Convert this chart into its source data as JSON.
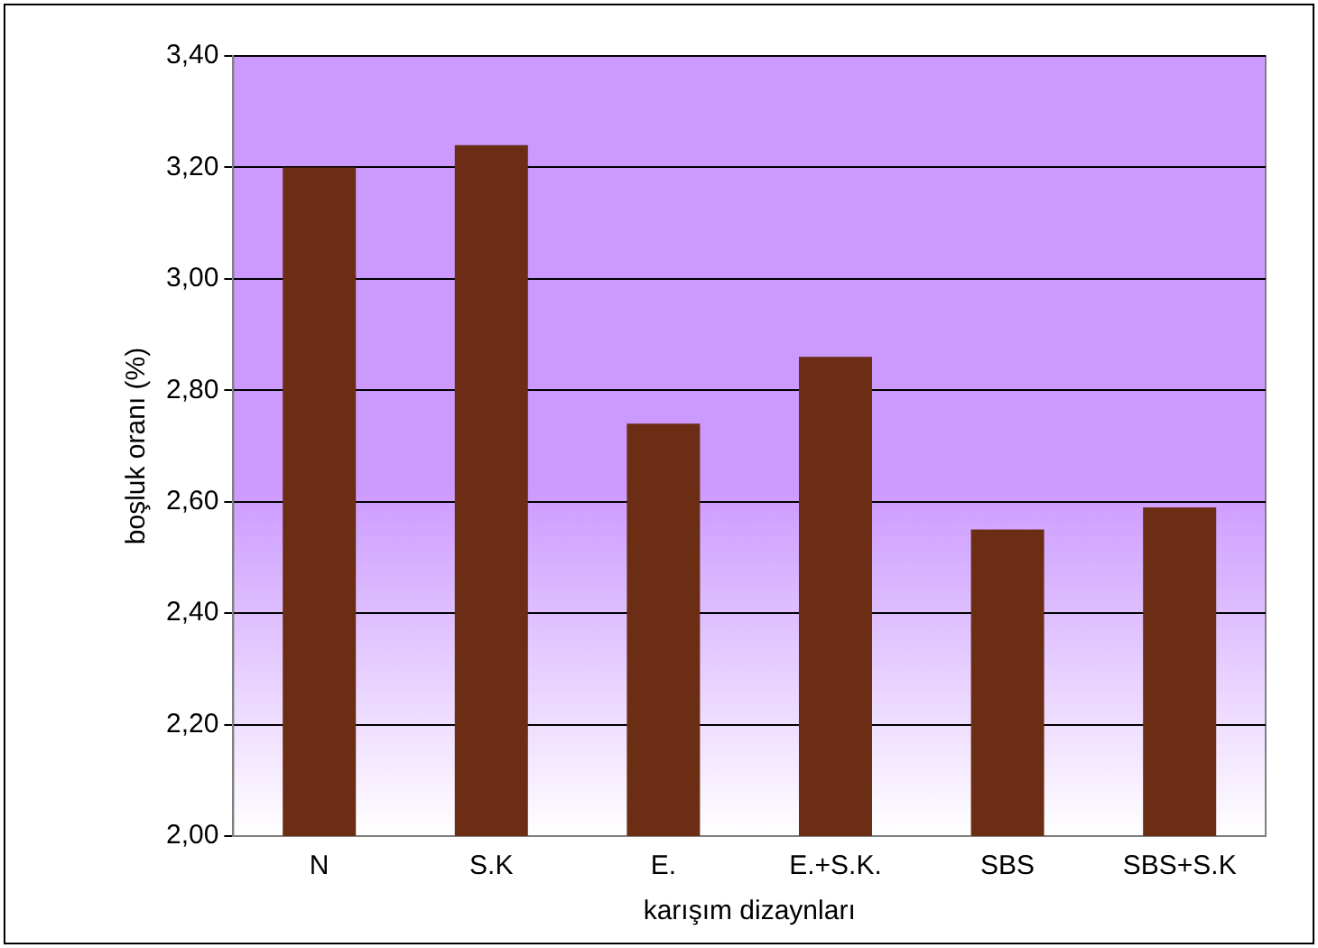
{
  "chart_data": {
    "type": "bar",
    "xlabel": "karışım dizaynları",
    "ylabel": "boşluk oranı (%)",
    "categories": [
      "N",
      "S.K",
      "E.",
      "E.+S.K.",
      "SBS",
      "SBS+S.K"
    ],
    "values": [
      3.2,
      3.24,
      2.74,
      2.86,
      2.55,
      2.59
    ],
    "color": "#6b2d14",
    "ylim": [
      2.0,
      3.4
    ],
    "yticks": [
      {
        "value": 2.0,
        "label": "2,00"
      },
      {
        "value": 2.2,
        "label": "2,20"
      },
      {
        "value": 2.4,
        "label": "2,40"
      },
      {
        "value": 2.6,
        "label": "2,60"
      },
      {
        "value": 2.8,
        "label": "2,80"
      },
      {
        "value": 3.0,
        "label": "3,00"
      },
      {
        "value": 3.2,
        "label": "3,20"
      },
      {
        "value": 3.4,
        "label": "3,40"
      }
    ],
    "grid": "y",
    "legend": false
  }
}
